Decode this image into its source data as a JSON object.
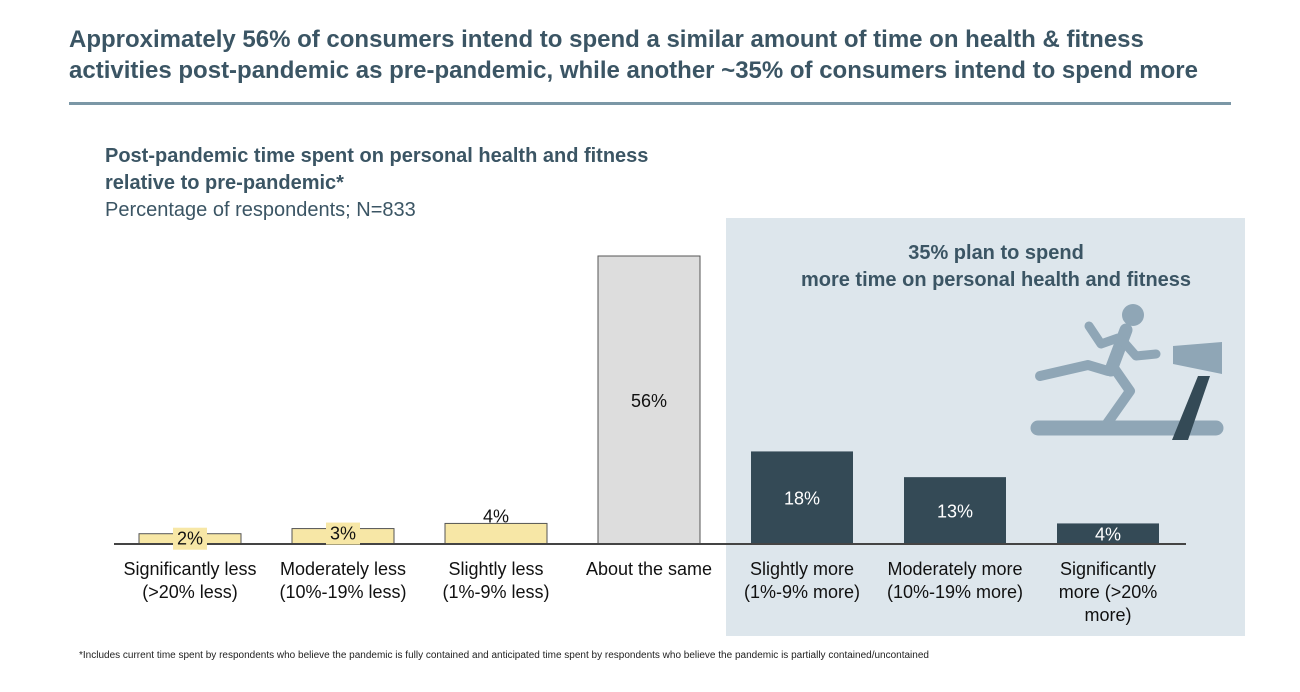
{
  "headline": {
    "line1": "Approximately 56% of consumers intend to spend a similar amount of time on health & fitness",
    "line2": "activities post-pandemic as pre-pandemic, while another ~35% of consumers intend to spend more"
  },
  "callout": {
    "line1": "35% plan to spend",
    "line2": "more time on personal health and fitness"
  },
  "footnote": "*Includes current time spent by respondents who believe the pandemic is fully contained and anticipated time spent by respondents who believe the pandemic is partially contained/uncontained",
  "icons": {
    "runner": "treadmill-runner-icon"
  },
  "colors": {
    "less": "#f7e7a6",
    "same": "#dddddd",
    "more": "#344a56",
    "panel": "#dde6ec",
    "heading": "#3b5564"
  },
  "chart_data": {
    "type": "bar",
    "title": "Post-pandemic time spent on personal health and fitness relative to pre-pandemic*",
    "subtitle": "Percentage of respondents; N=833",
    "xlabel": "",
    "ylabel": "",
    "ylim": [
      0,
      56
    ],
    "categories": [
      [
        "Significantly less",
        "(>20% less)"
      ],
      [
        "Moderately less",
        "(10%-19% less)"
      ],
      [
        "Slightly less",
        "(1%-9% less)"
      ],
      [
        "About the same"
      ],
      [
        "Slightly more",
        "(1%-9% more)"
      ],
      [
        "Moderately more",
        "(10%-19% more)"
      ],
      [
        "Significantly",
        "more (>20%",
        "more)"
      ]
    ],
    "values": [
      2,
      3,
      4,
      56,
      18,
      13,
      4
    ],
    "labels": [
      "2%",
      "3%",
      "4%",
      "56%",
      "18%",
      "13%",
      "4%"
    ],
    "groups": [
      "less",
      "less",
      "less",
      "same",
      "more",
      "more",
      "more"
    ]
  }
}
